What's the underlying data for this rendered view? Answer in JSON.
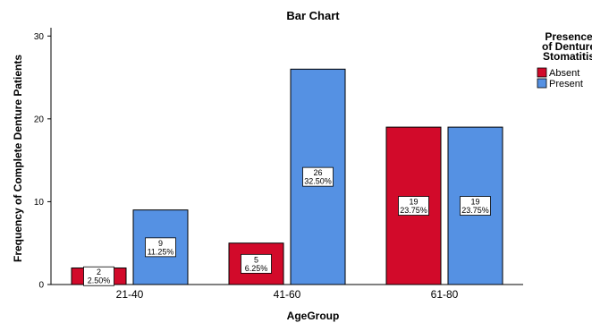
{
  "chart_data": {
    "type": "bar",
    "title": "Bar Chart",
    "xlabel": "AgeGroup",
    "ylabel": "Frequency of Complete Denture Patients",
    "categories": [
      "21-40",
      "41-60",
      "61-80"
    ],
    "ylim": [
      0,
      31
    ],
    "yticks": [
      0,
      10,
      20,
      30
    ],
    "legend": {
      "title_lines": [
        "Presence",
        "of Denture",
        "Stomatitis"
      ],
      "placement": "right"
    },
    "series": [
      {
        "name": "Absent",
        "color": "#d20a2a",
        "values": [
          2,
          5,
          19
        ],
        "labels": [
          [
            "2",
            "2.50%"
          ],
          [
            "5",
            "6.25%"
          ],
          [
            "19",
            "23.75%"
          ]
        ]
      },
      {
        "name": "Present",
        "color": "#5591e3",
        "values": [
          9,
          26,
          19
        ],
        "labels": [
          [
            "9",
            "11.25%"
          ],
          [
            "26",
            "32.50%"
          ],
          [
            "19",
            "23.75%"
          ]
        ]
      }
    ]
  }
}
